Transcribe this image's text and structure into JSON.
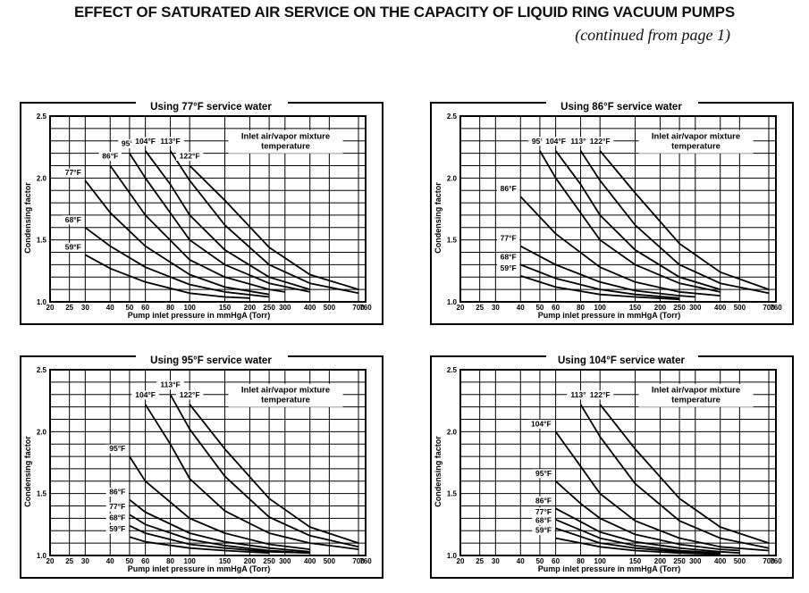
{
  "header": {
    "title": "EFFECT OF SATURATED AIR SERVICE ON THE CAPACITY OF LIQUID RING VACUUM PUMPS",
    "subtitle": "(continued from page 1)"
  },
  "chart_data": [
    {
      "type": "line",
      "title": "Using 77°F service water",
      "xlabel": "Pump inlet pressure in mmHgA (Torr)",
      "ylabel": "Condensing factor",
      "legend_text": [
        "Inlet air/vapor mixture",
        "temperature"
      ],
      "x_scale": "log",
      "xlim": [
        20,
        760
      ],
      "ylim": [
        1.0,
        2.5
      ],
      "x_ticks": [
        20,
        25,
        30,
        40,
        50,
        60,
        80,
        100,
        150,
        200,
        250,
        300,
        400,
        500,
        700,
        760
      ],
      "y_ticks": [
        1.0,
        1.5,
        2.0,
        2.5
      ],
      "series": [
        {
          "name": "59°F",
          "x": [
            30,
            40,
            60,
            100,
            150,
            200
          ],
          "y": [
            1.38,
            1.27,
            1.16,
            1.07,
            1.04,
            1.03
          ]
        },
        {
          "name": "68°F",
          "x": [
            30,
            40,
            60,
            100,
            150,
            250
          ],
          "y": [
            1.6,
            1.45,
            1.28,
            1.14,
            1.08,
            1.04
          ]
        },
        {
          "name": "77°F",
          "x": [
            30,
            40,
            60,
            100,
            150,
            250
          ],
          "y": [
            1.98,
            1.72,
            1.45,
            1.22,
            1.12,
            1.06
          ]
        },
        {
          "name": "86°F",
          "x": [
            40,
            60,
            100,
            150,
            250,
            300
          ],
          "y": [
            2.1,
            1.7,
            1.34,
            1.2,
            1.1,
            1.08
          ]
        },
        {
          "name": "95°F",
          "x": [
            50,
            60,
            100,
            150,
            250,
            400
          ],
          "y": [
            2.2,
            2.0,
            1.5,
            1.3,
            1.15,
            1.08
          ]
        },
        {
          "name": "104°F",
          "x": [
            60,
            80,
            100,
            150,
            250,
            400
          ],
          "y": [
            2.22,
            1.95,
            1.7,
            1.42,
            1.2,
            1.1
          ]
        },
        {
          "name": "113°F",
          "x": [
            80,
            100,
            150,
            250,
            400,
            700
          ],
          "y": [
            2.22,
            1.98,
            1.62,
            1.3,
            1.15,
            1.07
          ]
        },
        {
          "name": "122°F",
          "x": [
            100,
            150,
            250,
            400,
            700
          ],
          "y": [
            2.1,
            1.82,
            1.44,
            1.22,
            1.1
          ]
        }
      ]
    },
    {
      "type": "line",
      "title": "Using 86°F service water",
      "xlabel": "Pump inlet pressure in mmHgA (Torr)",
      "ylabel": "Condensing factor",
      "legend_text": [
        "Inlet air/vapor mixture",
        "temperature"
      ],
      "x_scale": "log",
      "xlim": [
        20,
        760
      ],
      "ylim": [
        1.0,
        2.5
      ],
      "x_ticks": [
        20,
        25,
        30,
        40,
        50,
        60,
        80,
        100,
        150,
        200,
        250,
        300,
        400,
        500,
        700,
        760
      ],
      "y_ticks": [
        1.0,
        1.5,
        2.0,
        2.5
      ],
      "series": [
        {
          "name": "59°F",
          "x": [
            40,
            60,
            100,
            150,
            250
          ],
          "y": [
            1.21,
            1.12,
            1.06,
            1.04,
            1.02
          ]
        },
        {
          "name": "68°F",
          "x": [
            40,
            60,
            100,
            150,
            250
          ],
          "y": [
            1.3,
            1.19,
            1.1,
            1.06,
            1.03
          ]
        },
        {
          "name": "77°F",
          "x": [
            40,
            60,
            100,
            150,
            250,
            300
          ],
          "y": [
            1.45,
            1.3,
            1.16,
            1.09,
            1.05,
            1.04
          ]
        },
        {
          "name": "86°F",
          "x": [
            40,
            60,
            100,
            150,
            250,
            400
          ],
          "y": [
            1.85,
            1.55,
            1.28,
            1.16,
            1.08,
            1.05
          ]
        },
        {
          "name": "95°F",
          "x": [
            50,
            60,
            100,
            150,
            250,
            400
          ],
          "y": [
            2.22,
            2.0,
            1.5,
            1.3,
            1.15,
            1.08
          ]
        },
        {
          "name": "104°F",
          "x": [
            60,
            80,
            100,
            150,
            250,
            400
          ],
          "y": [
            2.22,
            1.95,
            1.7,
            1.42,
            1.2,
            1.1
          ]
        },
        {
          "name": "113°F",
          "x": [
            80,
            100,
            150,
            250,
            400,
            700
          ],
          "y": [
            2.22,
            1.98,
            1.62,
            1.3,
            1.15,
            1.07
          ]
        },
        {
          "name": "122°F",
          "x": [
            100,
            150,
            250,
            400,
            700
          ],
          "y": [
            2.22,
            1.88,
            1.47,
            1.24,
            1.1
          ]
        }
      ]
    },
    {
      "type": "line",
      "title": "Using 95°F service water",
      "xlabel": "Pump inlet pressure in mmHgA (Torr)",
      "ylabel": "Condensing factor",
      "legend_text": [
        "Inlet air/vapor mixture",
        "temperature"
      ],
      "x_scale": "log",
      "xlim": [
        20,
        760
      ],
      "ylim": [
        1.0,
        2.5
      ],
      "x_ticks": [
        20,
        25,
        30,
        40,
        50,
        60,
        80,
        100,
        150,
        200,
        250,
        300,
        400,
        500,
        700,
        760
      ],
      "y_ticks": [
        1.0,
        1.5,
        2.0,
        2.5
      ],
      "series": [
        {
          "name": "59°F",
          "x": [
            50,
            60,
            100,
            150,
            250
          ],
          "y": [
            1.15,
            1.11,
            1.06,
            1.04,
            1.02
          ]
        },
        {
          "name": "68°F",
          "x": [
            50,
            60,
            100,
            150,
            250,
            400
          ],
          "y": [
            1.24,
            1.18,
            1.09,
            1.06,
            1.03,
            1.02
          ]
        },
        {
          "name": "77°F",
          "x": [
            50,
            60,
            100,
            150,
            250,
            400
          ],
          "y": [
            1.33,
            1.25,
            1.13,
            1.08,
            1.04,
            1.02
          ]
        },
        {
          "name": "86°F",
          "x": [
            50,
            60,
            100,
            150,
            250,
            400
          ],
          "y": [
            1.45,
            1.35,
            1.18,
            1.11,
            1.06,
            1.03
          ]
        },
        {
          "name": "95°F",
          "x": [
            50,
            60,
            100,
            150,
            250,
            400
          ],
          "y": [
            1.8,
            1.6,
            1.3,
            1.18,
            1.09,
            1.05
          ]
        },
        {
          "name": "104°F",
          "x": [
            60,
            80,
            100,
            150,
            250,
            400,
            700
          ],
          "y": [
            2.22,
            1.9,
            1.62,
            1.36,
            1.18,
            1.1,
            1.05
          ]
        },
        {
          "name": "113°F",
          "x": [
            80,
            100,
            150,
            250,
            400,
            700
          ],
          "y": [
            2.3,
            2.02,
            1.64,
            1.31,
            1.16,
            1.07
          ]
        },
        {
          "name": "122°F",
          "x": [
            100,
            150,
            250,
            400,
            700
          ],
          "y": [
            2.22,
            1.86,
            1.46,
            1.23,
            1.1
          ]
        }
      ]
    },
    {
      "type": "line",
      "title": "Using 104°F service water",
      "xlabel": "Pump inlet pressure in mmHgA (Torr)",
      "ylabel": "Condensing factor",
      "legend_text": [
        "Inlet air/vapor mixture",
        "temperature"
      ],
      "x_scale": "log",
      "xlim": [
        20,
        760
      ],
      "ylim": [
        1.0,
        2.5
      ],
      "x_ticks": [
        20,
        25,
        30,
        40,
        50,
        60,
        80,
        100,
        150,
        200,
        250,
        300,
        400,
        500,
        700,
        760
      ],
      "y_ticks": [
        1.0,
        1.5,
        2.0,
        2.5
      ],
      "series": [
        {
          "name": "59°F",
          "x": [
            60,
            100,
            150,
            250,
            400
          ],
          "y": [
            1.14,
            1.07,
            1.04,
            1.02,
            1.01
          ]
        },
        {
          "name": "68°F",
          "x": [
            60,
            100,
            150,
            250,
            400
          ],
          "y": [
            1.22,
            1.1,
            1.06,
            1.03,
            1.02
          ]
        },
        {
          "name": "77°F",
          "x": [
            60,
            100,
            150,
            250,
            400
          ],
          "y": [
            1.29,
            1.14,
            1.08,
            1.04,
            1.02
          ]
        },
        {
          "name": "86°F",
          "x": [
            60,
            100,
            150,
            250,
            400,
            500
          ],
          "y": [
            1.38,
            1.19,
            1.11,
            1.06,
            1.03,
            1.02
          ]
        },
        {
          "name": "95°F",
          "x": [
            60,
            80,
            100,
            150,
            250,
            400,
            500
          ],
          "y": [
            1.6,
            1.42,
            1.3,
            1.17,
            1.09,
            1.05,
            1.04
          ]
        },
        {
          "name": "104°F",
          "x": [
            60,
            80,
            100,
            150,
            250,
            400,
            700
          ],
          "y": [
            2.0,
            1.72,
            1.5,
            1.28,
            1.14,
            1.07,
            1.04
          ]
        },
        {
          "name": "113°F",
          "x": [
            80,
            100,
            150,
            250,
            400,
            700
          ],
          "y": [
            2.22,
            1.96,
            1.58,
            1.28,
            1.14,
            1.06
          ]
        },
        {
          "name": "122°F",
          "x": [
            100,
            150,
            250,
            400,
            700
          ],
          "y": [
            2.22,
            1.86,
            1.46,
            1.23,
            1.1
          ]
        }
      ]
    }
  ]
}
